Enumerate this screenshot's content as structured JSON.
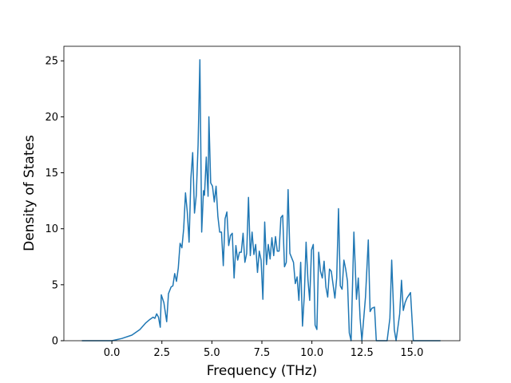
{
  "chart_data": {
    "type": "line",
    "xlabel": "Frequency (THz)",
    "ylabel": "Density of States",
    "x": [
      -1.5,
      0,
      0.5,
      1.0,
      1.4,
      1.7,
      1.9,
      2.06,
      2.15,
      2.24,
      2.33,
      2.42,
      2.47,
      2.6,
      2.74,
      2.83,
      2.96,
      3.05,
      3.14,
      3.23,
      3.32,
      3.41,
      3.5,
      3.59,
      3.68,
      3.77,
      3.86,
      3.95,
      4.04,
      4.13,
      4.22,
      4.31,
      4.4,
      4.49,
      4.58,
      4.63,
      4.72,
      4.81,
      4.85,
      4.94,
      5.03,
      5.12,
      5.21,
      5.3,
      5.39,
      5.48,
      5.57,
      5.66,
      5.75,
      5.84,
      5.93,
      6.02,
      6.11,
      6.2,
      6.29,
      6.38,
      6.47,
      6.56,
      6.65,
      6.74,
      6.83,
      6.92,
      7.01,
      7.1,
      7.19,
      7.28,
      7.37,
      7.46,
      7.55,
      7.64,
      7.73,
      7.82,
      7.91,
      8.0,
      8.09,
      8.18,
      8.27,
      8.36,
      8.45,
      8.54,
      8.63,
      8.72,
      8.81,
      8.9,
      8.99,
      9.08,
      9.17,
      9.26,
      9.35,
      9.44,
      9.53,
      9.62,
      9.71,
      9.8,
      9.89,
      9.98,
      10.07,
      10.16,
      10.25,
      10.34,
      10.43,
      10.52,
      10.61,
      10.7,
      10.79,
      10.88,
      10.97,
      11.06,
      11.15,
      11.24,
      11.33,
      11.42,
      11.51,
      11.6,
      11.69,
      11.78,
      11.87,
      11.96,
      12.1,
      12.23,
      12.32,
      12.41,
      12.5,
      12.68,
      12.82,
      12.91,
      13.0,
      13.13,
      13.22,
      13.58,
      13.76,
      13.9,
      13.99,
      14.12,
      14.21,
      14.39,
      14.48,
      14.57,
      14.66,
      14.75,
      14.93,
      15.07,
      16.43
    ],
    "series": [
      {
        "color": "#1f77b4",
        "values": [
          0,
          0,
          0.2,
          0.5,
          1.0,
          1.6,
          1.9,
          2.1,
          2.0,
          2.4,
          2.1,
          1.2,
          4.1,
          3.4,
          1.7,
          4.2,
          4.8,
          4.9,
          6.0,
          5.3,
          6.5,
          8.7,
          8.3,
          10.0,
          13.2,
          11.5,
          8.8,
          14.5,
          16.8,
          11.4,
          13.0,
          17.5,
          25.1,
          9.7,
          13.4,
          13.0,
          16.4,
          12.9,
          20.0,
          14.1,
          13.8,
          12.4,
          13.8,
          11.1,
          9.7,
          9.7,
          6.7,
          10.9,
          11.5,
          8.5,
          9.4,
          9.6,
          5.6,
          8.5,
          7.2,
          7.9,
          7.9,
          9.6,
          7.0,
          7.8,
          12.8,
          7.6,
          9.7,
          7.7,
          8.6,
          6.1,
          8.0,
          7.2,
          3.7,
          10.6,
          6.8,
          8.6,
          7.3,
          9.2,
          7.6,
          9.3,
          8.0,
          8.0,
          11.0,
          11.2,
          6.6,
          7.0,
          13.5,
          7.8,
          7.4,
          7.0,
          5.1,
          5.7,
          3.6,
          7.0,
          1.3,
          4.0,
          8.8,
          5.5,
          3.6,
          8.1,
          8.6,
          1.4,
          1.0,
          7.9,
          6.2,
          5.6,
          7.1,
          4.8,
          3.9,
          6.4,
          6.2,
          5.0,
          3.8,
          5.6,
          11.8,
          4.9,
          4.6,
          7.2,
          6.4,
          5.3,
          0.7,
          0,
          9.7,
          3.7,
          5.6,
          2.0,
          0,
          3.9,
          9.0,
          2.6,
          2.9,
          3.0,
          0,
          0,
          0,
          2.0,
          7.2,
          1.0,
          0,
          2.4,
          5.4,
          2.7,
          3.4,
          3.8,
          4.3,
          0,
          0
        ]
      }
    ],
    "xlim": [
      -2.4,
      17.4
    ],
    "ylim": [
      0,
      26.3
    ],
    "xticks": [
      {
        "value": 0,
        "label": "0.0"
      },
      {
        "value": 2.5,
        "label": "2.5"
      },
      {
        "value": 5,
        "label": "5.0"
      },
      {
        "value": 7.5,
        "label": "7.5"
      },
      {
        "value": 10,
        "label": "10.0"
      },
      {
        "value": 12.5,
        "label": "12.5"
      },
      {
        "value": 15,
        "label": "15.0"
      }
    ],
    "yticks": [
      0,
      5,
      10,
      15,
      20,
      25
    ]
  }
}
